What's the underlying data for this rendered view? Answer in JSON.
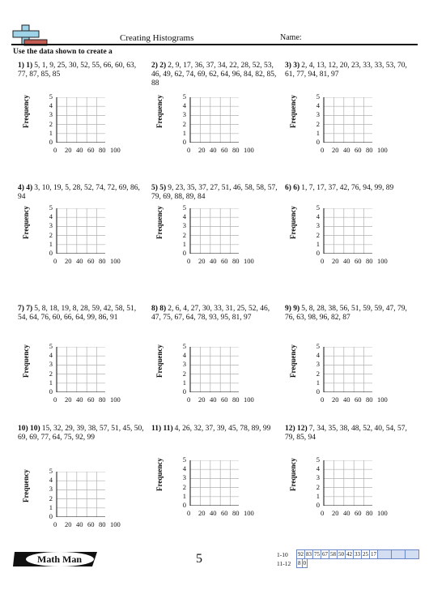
{
  "header": {
    "title": "Creating Histograms",
    "name_label": "Name:",
    "instructions": "Use the data shown to create a"
  },
  "axis": {
    "ylabel": "Frequency",
    "yticks": [
      "0",
      "1",
      "2",
      "3",
      "4",
      "5"
    ],
    "xticks": [
      "0",
      "20",
      "40",
      "60",
      "80",
      "100"
    ]
  },
  "problems": [
    {
      "label": "1) 1)",
      "data": "5, 1, 9, 25, 30, 52, 55, 66, 60, 63, 77, 87, 85, 85"
    },
    {
      "label": "2) 2)",
      "data": "2, 9, 17, 36, 37, 34, 22, 28, 52, 53, 46, 49, 62, 74, 69, 62, 64, 96, 84, 82, 85, 88"
    },
    {
      "label": "3) 3)",
      "data": "2, 4, 13, 12, 20, 23, 33, 33, 53, 70, 61, 77, 94, 81, 97"
    },
    {
      "label": "4) 4)",
      "data": "3, 10, 19, 5, 28, 52, 74, 72, 69, 86, 94"
    },
    {
      "label": "5) 5)",
      "data": "9, 23, 35, 37, 27, 51, 46, 58, 58, 57, 79, 69, 88, 89, 84"
    },
    {
      "label": "6) 6)",
      "data": "1, 7, 17, 37, 42, 76, 94, 99, 89"
    },
    {
      "label": "7) 7)",
      "data": "5, 8, 18, 19, 8, 28, 59, 42, 58, 51, 54, 64, 76, 60, 66, 64, 99, 86, 91"
    },
    {
      "label": "8) 8)",
      "data": "2, 6, 4, 27, 30, 33, 31, 25, 52, 46, 47, 75, 67, 64, 78, 93, 95, 81, 97"
    },
    {
      "label": "9) 9)",
      "data": "5, 8, 28, 38, 56, 51, 59, 59, 47, 79, 76, 63, 98, 96, 82, 87"
    },
    {
      "label": "10) 10)",
      "data": "15, 32, 29, 39, 38, 57, 51, 45, 50, 69, 69, 77, 64, 75, 92, 99"
    },
    {
      "label": "11) 11)",
      "data": "4, 26, 32, 37, 39, 45, 78, 89, 99"
    },
    {
      "label": "12) 12)",
      "data": "7, 34, 35, 38, 48, 52, 40, 54, 57, 79, 85, 94"
    }
  ],
  "footer": {
    "brand": "Math Man",
    "page_number": "5",
    "key": [
      {
        "label": "1-10",
        "values": [
          "92",
          "83",
          "75",
          "67",
          "58",
          "50",
          "42",
          "33",
          "25",
          "17"
        ]
      },
      {
        "label": "11-12",
        "values": [
          "8",
          "0"
        ]
      }
    ]
  },
  "colors": {
    "grid": "#b0b0b0",
    "key_border": "#6a86c9",
    "key_fill": "#d3def3",
    "logo_cross": "#9fd3e8",
    "logo_bar": "#c25b52"
  }
}
